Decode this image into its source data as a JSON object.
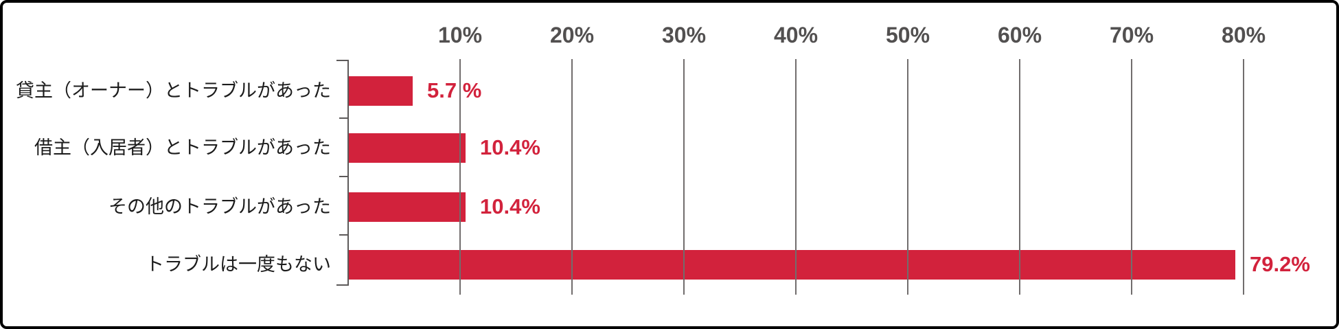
{
  "chart_data": {
    "type": "bar",
    "orientation": "horizontal",
    "title": "",
    "categories": [
      "貸主（オーナー）とトラブルがあった",
      "借主（入居者）とトラブルがあった",
      "その他のトラブルがあった",
      "トラブルは一度もない"
    ],
    "values": [
      5.7,
      10.4,
      10.4,
      79.2
    ],
    "value_labels": [
      "5.7 %",
      "10.4%",
      "10.4%",
      "79.2%"
    ],
    "x_ticks": [
      {
        "label": "10%",
        "value": 10
      },
      {
        "label": "20%",
        "value": 20
      },
      {
        "label": "30%",
        "value": 30
      },
      {
        "label": "40%",
        "value": 40
      },
      {
        "label": "50%",
        "value": 50
      },
      {
        "label": "60%",
        "value": 60
      },
      {
        "label": "70%",
        "value": 70
      },
      {
        "label": "80%",
        "value": 80
      }
    ],
    "xlim": [
      0,
      80
    ],
    "grid": true,
    "legend": "none",
    "colors": {
      "bar": "#d2223c",
      "value_label": "#d2223c",
      "gridline": "#716d6d",
      "axis": "#5c5959",
      "tick_label": "#525050",
      "category_label": "#1c1c1c",
      "background": "#ffffff",
      "border": "#000000"
    }
  }
}
